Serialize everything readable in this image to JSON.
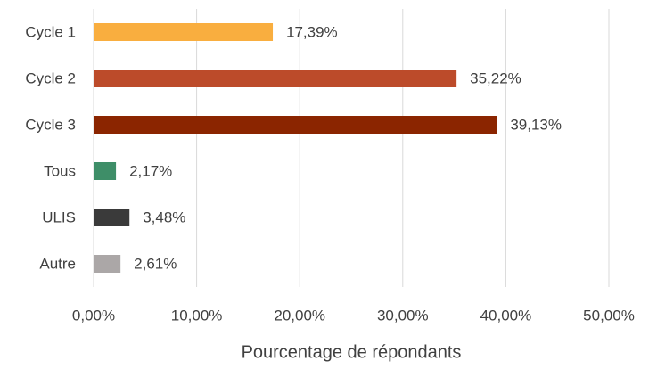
{
  "chart_data": {
    "type": "bar",
    "orientation": "horizontal",
    "categories": [
      "Cycle 1",
      "Cycle 2",
      "Cycle 3",
      "Tous",
      "ULIS",
      "Autre"
    ],
    "values": [
      17.39,
      35.22,
      39.13,
      2.17,
      3.48,
      2.61
    ],
    "value_labels": [
      "17,39%",
      "35,22%",
      "39,13%",
      "2,17%",
      "3,48%",
      "2,61%"
    ],
    "colors": [
      "#F9AE3F",
      "#BC4B2A",
      "#8B2500",
      "#3E8E68",
      "#3A3A3A",
      "#ABA7A7"
    ],
    "xlim": [
      0,
      50
    ],
    "xticks": [
      {
        "value": 0,
        "label": "0,00%"
      },
      {
        "value": 10,
        "label": "10,00%"
      },
      {
        "value": 20,
        "label": "20,00%"
      },
      {
        "value": 30,
        "label": "30,00%"
      },
      {
        "value": 40,
        "label": "40,00%"
      },
      {
        "value": 50,
        "label": "50,00%"
      }
    ],
    "x_label": "Pourcentage de répondants",
    "grid": true
  }
}
